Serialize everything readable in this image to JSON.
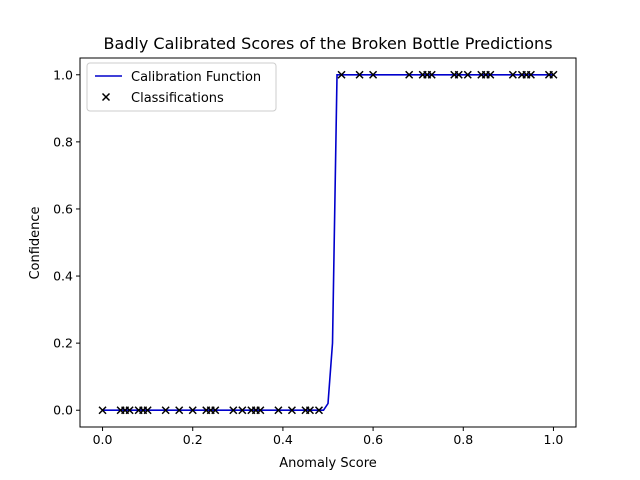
{
  "chart_data": {
    "type": "line",
    "title": "Badly Calibrated Scores of the Broken Bottle Predictions",
    "xlabel": "Anomaly Score",
    "ylabel": "Confidence",
    "xlim": [
      -0.05,
      1.05
    ],
    "ylim": [
      -0.05,
      1.05
    ],
    "xticks": [
      0.0,
      0.2,
      0.4,
      0.6,
      0.8,
      1.0
    ],
    "xtick_labels": [
      "0.0",
      "0.2",
      "0.4",
      "0.6",
      "0.8",
      "1.0"
    ],
    "yticks": [
      0.0,
      0.2,
      0.4,
      0.6,
      0.8,
      1.0
    ],
    "ytick_labels": [
      "0.0",
      "0.2",
      "0.4",
      "0.6",
      "0.8",
      "1.0"
    ],
    "grid": false,
    "legend": {
      "placement": "upper-left",
      "entries": [
        "Calibration Function",
        "Classifications"
      ]
    },
    "series": [
      {
        "name": "Calibration Function",
        "kind": "line",
        "color": "#0000cc",
        "x": [
          0.0,
          0.49,
          0.5,
          0.51,
          0.52,
          1.0
        ],
        "y": [
          0.0,
          0.0,
          0.02,
          0.2,
          1.0,
          1.0
        ]
      },
      {
        "name": "Classifications",
        "kind": "scatter",
        "marker": "x",
        "color": "#000000",
        "x": [
          0.0,
          0.04,
          0.05,
          0.06,
          0.08,
          0.09,
          0.1,
          0.14,
          0.17,
          0.2,
          0.23,
          0.24,
          0.25,
          0.29,
          0.31,
          0.33,
          0.34,
          0.35,
          0.39,
          0.42,
          0.45,
          0.46,
          0.48,
          0.53,
          0.57,
          0.6,
          0.68,
          0.71,
          0.72,
          0.73,
          0.78,
          0.79,
          0.81,
          0.84,
          0.85,
          0.86,
          0.91,
          0.93,
          0.94,
          0.95,
          0.99,
          1.0
        ],
        "y": [
          0,
          0,
          0,
          0,
          0,
          0,
          0,
          0,
          0,
          0,
          0,
          0,
          0,
          0,
          0,
          0,
          0,
          0,
          0,
          0,
          0,
          0,
          0,
          1,
          1,
          1,
          1,
          1,
          1,
          1,
          1,
          1,
          1,
          1,
          1,
          1,
          1,
          1,
          1,
          1,
          1,
          1
        ]
      }
    ]
  }
}
